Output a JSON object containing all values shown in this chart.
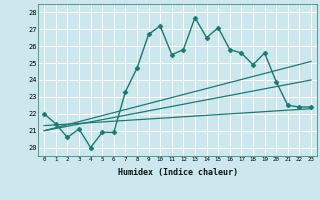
{
  "bg_color": "#cce8ee",
  "line_color": "#1a7a6e",
  "grid_color": "#b0d8e0",
  "x_label": "Humidex (Indice chaleur)",
  "xlim": [
    -0.5,
    23.5
  ],
  "ylim": [
    19.5,
    28.5
  ],
  "yticks": [
    20,
    21,
    22,
    23,
    24,
    25,
    26,
    27,
    28
  ],
  "xticks": [
    0,
    1,
    2,
    3,
    4,
    5,
    6,
    7,
    8,
    9,
    10,
    11,
    12,
    13,
    14,
    15,
    16,
    17,
    18,
    19,
    20,
    21,
    22,
    23
  ],
  "series": [
    {
      "x": [
        0,
        1,
        2,
        3,
        4,
        5,
        6,
        7,
        8,
        9,
        10,
        11,
        12,
        13,
        14,
        15,
        16,
        17,
        18,
        19,
        20,
        21,
        22,
        23
      ],
      "y": [
        22.0,
        21.4,
        20.6,
        21.1,
        20.0,
        20.9,
        20.9,
        23.3,
        24.7,
        26.7,
        27.2,
        25.5,
        25.8,
        27.7,
        26.5,
        27.1,
        25.8,
        25.6,
        24.9,
        25.6,
        23.9,
        22.5,
        22.4,
        22.4
      ],
      "marker": "D",
      "markersize": 2.5,
      "linewidth": 1.0
    },
    {
      "x": [
        0,
        23
      ],
      "y": [
        21.0,
        25.1
      ],
      "marker": null,
      "linewidth": 0.9
    },
    {
      "x": [
        0,
        23
      ],
      "y": [
        21.0,
        24.0
      ],
      "marker": null,
      "linewidth": 0.9
    },
    {
      "x": [
        0,
        23
      ],
      "y": [
        21.3,
        22.3
      ],
      "marker": null,
      "linewidth": 0.9
    }
  ]
}
